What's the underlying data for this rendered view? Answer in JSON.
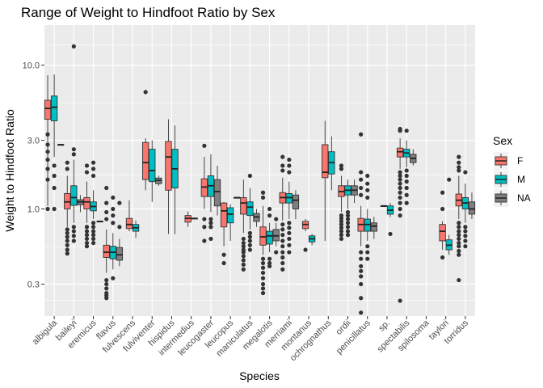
{
  "chart_data": {
    "type": "boxplot",
    "title": "Range of Weight to Hindfoot Ratio by Sex",
    "xlabel": "Species",
    "ylabel": "Weight to Hindfoot Ratio",
    "y_scale": "log10",
    "ylim": [
      0.18,
      19
    ],
    "y_ticks": [
      {
        "value": 0.3,
        "label": "0.3"
      },
      {
        "value": 1.0,
        "label": "1.0"
      },
      {
        "value": 3.0,
        "label": "3.0"
      },
      {
        "value": 10.0,
        "label": "10.0"
      }
    ],
    "grid": true,
    "legend": {
      "title": "Sex",
      "position": "right",
      "entries": [
        {
          "key": "F",
          "label": "F",
          "color": "#F8766D"
        },
        {
          "key": "M",
          "label": "M",
          "color": "#00BFC4"
        },
        {
          "key": "NA",
          "label": "NA",
          "color": "#7F7F7F"
        }
      ]
    },
    "categories": [
      "albigula",
      "baileyi",
      "eremicus",
      "flavus",
      "fulvescens",
      "fulviventer",
      "hispidus",
      "intermedius",
      "leucogaster",
      "leucopus",
      "maniculatus",
      "megalotis",
      "merriami",
      "montanus",
      "ochrognathus",
      "ordii",
      "penicillatus",
      "sp.",
      "spectabilis",
      "spilosoma",
      "taylori",
      "torridus"
    ],
    "groups": [
      {
        "species": "albigula",
        "boxes": [
          {
            "sex": "F",
            "min": 1.05,
            "q1": 4.2,
            "median": 5.0,
            "q3": 5.7,
            "max": 8.5,
            "outliers": [
              3.3,
              2.8,
              2.5,
              2.2,
              1.9,
              1.6,
              1.0
            ]
          },
          {
            "sex": "M",
            "min": 2.3,
            "q1": 4.1,
            "median": 5.1,
            "q3": 6.1,
            "max": 8.6,
            "outliers": [
              2.0,
              1.7,
              1.4,
              1.0
            ]
          },
          {
            "sex": "NA",
            "min": 2.8,
            "q1": 2.8,
            "median": 2.8,
            "q3": 2.8,
            "max": 2.8,
            "outliers": []
          }
        ]
      },
      {
        "species": "baileyi",
        "boxes": [
          {
            "sex": "F",
            "min": 0.75,
            "q1": 1.0,
            "median": 1.12,
            "q3": 1.28,
            "max": 1.7,
            "outliers": [
              2.1,
              1.9,
              0.72,
              0.68,
              0.64,
              0.6,
              0.56,
              0.52,
              0.49
            ]
          },
          {
            "sex": "M",
            "min": 0.8,
            "q1": 1.06,
            "median": 1.2,
            "q3": 1.45,
            "max": 2.2,
            "outliers": [
              13.5,
              2.6,
              2.4,
              0.75,
              0.7,
              0.65,
              0.6
            ]
          },
          {
            "sex": "NA",
            "min": 0.95,
            "q1": 1.07,
            "median": 1.12,
            "q3": 1.16,
            "max": 1.25,
            "outliers": []
          }
        ]
      },
      {
        "species": "eremicus",
        "boxes": [
          {
            "sex": "F",
            "min": 0.8,
            "q1": 1.0,
            "median": 1.12,
            "q3": 1.2,
            "max": 1.55,
            "outliers": [
              2.0,
              1.8,
              0.75,
              0.7,
              0.66,
              0.62,
              0.58,
              0.55
            ]
          },
          {
            "sex": "M",
            "min": 0.85,
            "q1": 0.97,
            "median": 1.04,
            "q3": 1.12,
            "max": 1.35,
            "outliers": [
              2.1,
              1.9,
              1.7,
              0.8,
              0.75,
              0.7,
              0.66,
              0.62,
              0.58
            ]
          },
          {
            "sex": "NA",
            "min": 0.82,
            "q1": 0.82,
            "median": 0.82,
            "q3": 0.82,
            "max": 0.82,
            "outliers": []
          }
        ]
      },
      {
        "species": "flavus",
        "boxes": [
          {
            "sex": "F",
            "min": 0.36,
            "q1": 0.46,
            "median": 0.5,
            "q3": 0.56,
            "max": 0.72,
            "outliers": [
              1.4,
              1.1,
              0.95,
              0.85,
              0.32,
              0.3,
              0.28,
              0.26,
              0.25,
              0.24
            ]
          },
          {
            "sex": "M",
            "min": 0.38,
            "q1": 0.45,
            "median": 0.5,
            "q3": 0.55,
            "max": 0.68,
            "outliers": [
              1.2,
              1.0,
              0.9,
              0.8,
              0.33
            ]
          },
          {
            "sex": "NA",
            "min": 0.4,
            "q1": 0.44,
            "median": 0.48,
            "q3": 0.54,
            "max": 0.62,
            "outliers": [
              1.1,
              0.75
            ]
          }
        ]
      },
      {
        "species": "fulvescens",
        "boxes": [
          {
            "sex": "F",
            "min": 0.7,
            "q1": 0.73,
            "median": 0.78,
            "q3": 0.86,
            "max": 1.15,
            "outliers": []
          },
          {
            "sex": "M",
            "min": 0.63,
            "q1": 0.7,
            "median": 0.74,
            "q3": 0.78,
            "max": 0.83,
            "outliers": []
          }
        ]
      },
      {
        "species": "fulviventer",
        "boxes": [
          {
            "sex": "F",
            "min": 1.35,
            "q1": 1.6,
            "median": 2.1,
            "q3": 2.9,
            "max": 3.1,
            "outliers": [
              6.5
            ]
          },
          {
            "sex": "M",
            "min": 1.12,
            "q1": 1.55,
            "median": 1.85,
            "q3": 2.6,
            "max": 3.0,
            "outliers": []
          },
          {
            "sex": "NA",
            "min": 1.45,
            "q1": 1.5,
            "median": 1.58,
            "q3": 1.64,
            "max": 1.7,
            "outliers": []
          }
        ]
      },
      {
        "species": "hispidus",
        "boxes": [
          {
            "sex": "F",
            "min": 0.67,
            "q1": 1.35,
            "median": 2.3,
            "q3": 2.95,
            "max": 4.2,
            "outliers": []
          },
          {
            "sex": "M",
            "min": 0.67,
            "q1": 1.4,
            "median": 1.9,
            "q3": 2.6,
            "max": 3.8,
            "outliers": []
          }
        ]
      },
      {
        "species": "intermedius",
        "boxes": [
          {
            "sex": "F",
            "min": 0.75,
            "q1": 0.81,
            "median": 0.86,
            "q3": 0.9,
            "max": 0.96,
            "outliers": []
          },
          {
            "sex": "M",
            "min": 0.86,
            "q1": 0.86,
            "median": 0.86,
            "q3": 0.86,
            "max": 0.86,
            "outliers": []
          }
        ]
      },
      {
        "species": "leucogaster",
        "boxes": [
          {
            "sex": "F",
            "min": 1.0,
            "q1": 1.22,
            "median": 1.42,
            "q3": 1.62,
            "max": 2.3,
            "outliers": [
              2.75,
              0.85,
              0.75,
              0.6
            ]
          },
          {
            "sex": "M",
            "min": 0.95,
            "q1": 1.22,
            "median": 1.45,
            "q3": 1.7,
            "max": 2.4,
            "outliers": [
              0.85,
              0.8,
              0.75,
              0.62
            ]
          },
          {
            "sex": "NA",
            "min": 0.9,
            "q1": 1.05,
            "median": 1.32,
            "q3": 1.6,
            "max": 2.0,
            "outliers": []
          }
        ]
      },
      {
        "species": "leucopus",
        "boxes": [
          {
            "sex": "F",
            "min": 0.55,
            "q1": 0.75,
            "median": 0.97,
            "q3": 1.1,
            "max": 1.12,
            "outliers": [
              0.48,
              0.42
            ]
          },
          {
            "sex": "M",
            "min": 0.6,
            "q1": 0.8,
            "median": 0.92,
            "q3": 1.02,
            "max": 1.08,
            "outliers": []
          },
          {
            "sex": "NA",
            "min": 1.2,
            "q1": 1.2,
            "median": 1.2,
            "q3": 1.2,
            "max": 1.2,
            "outliers": []
          }
        ]
      },
      {
        "species": "maniculatus",
        "boxes": [
          {
            "sex": "F",
            "min": 0.68,
            "q1": 0.92,
            "median": 1.1,
            "q3": 1.2,
            "max": 1.6,
            "outliers": [
              0.62,
              0.58,
              0.55,
              0.52,
              0.5,
              0.47,
              0.44,
              0.41,
              0.38
            ]
          },
          {
            "sex": "M",
            "min": 0.72,
            "q1": 0.9,
            "median": 1.03,
            "q3": 1.12,
            "max": 1.4,
            "outliers": [
              1.7,
              0.68,
              0.64,
              0.6,
              0.56,
              0.52
            ]
          },
          {
            "sex": "NA",
            "min": 0.75,
            "q1": 0.82,
            "median": 0.88,
            "q3": 0.93,
            "max": 1.0,
            "outliers": []
          }
        ]
      },
      {
        "species": "megalotis",
        "boxes": [
          {
            "sex": "F",
            "min": 0.48,
            "q1": 0.56,
            "median": 0.64,
            "q3": 0.75,
            "max": 1.05,
            "outliers": [
              1.2,
              1.3,
              0.45,
              0.42,
              0.39,
              0.36,
              0.33,
              0.3,
              0.28,
              0.26
            ]
          },
          {
            "sex": "M",
            "min": 0.5,
            "q1": 0.57,
            "median": 0.65,
            "q3": 0.7,
            "max": 0.8,
            "outliers": [
              1.0,
              0.9,
              0.45,
              0.42,
              0.4
            ]
          },
          {
            "sex": "NA",
            "min": 0.55,
            "q1": 0.6,
            "median": 0.65,
            "q3": 0.72,
            "max": 0.8,
            "outliers": [
              0.85,
              0.5
            ]
          }
        ]
      },
      {
        "species": "merriami",
        "boxes": [
          {
            "sex": "F",
            "min": 0.83,
            "q1": 1.1,
            "median": 1.2,
            "q3": 1.3,
            "max": 1.65,
            "outliers": [
              2.3,
              2.0,
              1.85,
              0.78,
              0.72,
              0.66,
              0.6,
              0.55,
              0.5,
              0.46,
              0.42,
              0.38
            ]
          },
          {
            "sex": "M",
            "min": 0.85,
            "q1": 1.1,
            "median": 1.2,
            "q3": 1.28,
            "max": 1.55,
            "outliers": [
              2.2,
              2.0,
              1.8,
              0.8,
              0.74,
              0.68,
              0.62,
              0.56,
              0.5
            ]
          },
          {
            "sex": "NA",
            "min": 0.85,
            "q1": 1.0,
            "median": 1.15,
            "q3": 1.25,
            "max": 1.35,
            "outliers": []
          }
        ]
      },
      {
        "species": "montanus",
        "boxes": [
          {
            "sex": "F",
            "min": 0.7,
            "q1": 0.73,
            "median": 0.78,
            "q3": 0.82,
            "max": 0.85,
            "outliers": [
              0.52
            ]
          },
          {
            "sex": "M",
            "min": 0.56,
            "q1": 0.59,
            "median": 0.62,
            "q3": 0.65,
            "max": 0.67,
            "outliers": []
          }
        ]
      },
      {
        "species": "ochrognathus",
        "boxes": [
          {
            "sex": "F",
            "min": 0.6,
            "q1": 1.65,
            "median": 1.8,
            "q3": 2.8,
            "max": 4.1,
            "outliers": []
          },
          {
            "sex": "M",
            "min": 1.35,
            "q1": 1.75,
            "median": 2.1,
            "q3": 2.5,
            "max": 3.2,
            "outliers": []
          }
        ]
      },
      {
        "species": "ordii",
        "boxes": [
          {
            "sex": "F",
            "min": 0.95,
            "q1": 1.22,
            "median": 1.32,
            "q3": 1.45,
            "max": 1.7,
            "outliers": [
              1.9,
              2.0,
              0.9,
              0.86,
              0.82,
              0.78,
              0.74,
              0.7,
              0.66,
              0.62
            ]
          },
          {
            "sex": "M",
            "min": 1.0,
            "q1": 1.25,
            "median": 1.35,
            "q3": 1.45,
            "max": 1.6,
            "outliers": [
              0.95,
              0.9,
              0.85,
              0.8,
              0.75,
              0.7,
              0.66
            ]
          },
          {
            "sex": "NA",
            "min": 1.1,
            "q1": 1.25,
            "median": 1.35,
            "q3": 1.45,
            "max": 1.6,
            "outliers": []
          }
        ]
      },
      {
        "species": "penicillatus",
        "boxes": [
          {
            "sex": "F",
            "min": 0.55,
            "q1": 0.7,
            "median": 0.78,
            "q3": 0.86,
            "max": 1.05,
            "outliers": [
              3.3,
              1.8,
              1.6,
              1.4,
              1.25,
              0.5,
              0.45,
              0.4,
              0.37,
              0.34,
              0.3,
              0.24,
              0.19
            ]
          },
          {
            "sex": "M",
            "min": 0.6,
            "q1": 0.7,
            "median": 0.78,
            "q3": 0.85,
            "max": 1.0,
            "outliers": [
              1.7,
              1.5,
              1.35,
              1.2,
              0.55,
              0.5,
              0.45
            ]
          },
          {
            "sex": "NA",
            "min": 0.62,
            "q1": 0.7,
            "median": 0.76,
            "q3": 0.8,
            "max": 0.88,
            "outliers": []
          }
        ]
      },
      {
        "species": "sp.",
        "boxes": [
          {
            "sex": "F",
            "min": 1.05,
            "q1": 1.05,
            "median": 1.05,
            "q3": 1.05,
            "max": 1.05,
            "outliers": []
          },
          {
            "sex": "M",
            "min": 0.88,
            "q1": 0.92,
            "median": 0.98,
            "q3": 1.05,
            "max": 1.1,
            "outliers": [
              0.67
            ]
          }
        ]
      },
      {
        "species": "spectabilis",
        "boxes": [
          {
            "sex": "F",
            "min": 1.9,
            "q1": 2.3,
            "median": 2.5,
            "q3": 2.65,
            "max": 3.1,
            "outliers": [
              3.6,
              3.5,
              1.8,
              1.7,
              1.6,
              1.5,
              1.4,
              1.3,
              1.2,
              1.1,
              1.0,
              0.9,
              0.23
            ]
          },
          {
            "sex": "M",
            "min": 1.95,
            "q1": 2.3,
            "median": 2.45,
            "q3": 2.6,
            "max": 3.0,
            "outliers": [
              3.5,
              1.85,
              1.7,
              1.55,
              1.4,
              1.25,
              1.1
            ]
          },
          {
            "sex": "NA",
            "min": 2.0,
            "q1": 2.1,
            "median": 2.25,
            "q3": 2.4,
            "max": 2.6,
            "outliers": []
          }
        ]
      },
      {
        "species": "spilosoma",
        "boxes": []
      },
      {
        "species": "taylori",
        "boxes": [
          {
            "sex": "F",
            "min": 0.52,
            "q1": 0.6,
            "median": 0.7,
            "q3": 0.78,
            "max": 0.82,
            "outliers": [
              1.3,
              1.0,
              0.46
            ]
          },
          {
            "sex": "M",
            "min": 0.48,
            "q1": 0.52,
            "median": 0.56,
            "q3": 0.61,
            "max": 0.66,
            "outliers": [
              1.6
            ]
          }
        ]
      },
      {
        "species": "torridus",
        "boxes": [
          {
            "sex": "F",
            "min": 0.85,
            "q1": 1.05,
            "median": 1.15,
            "q3": 1.27,
            "max": 1.7,
            "outliers": [
              2.3,
              2.1,
              1.95,
              1.85,
              0.8,
              0.75,
              0.7,
              0.66,
              0.62,
              0.58,
              0.55,
              0.51,
              0.48,
              0.32
            ]
          },
          {
            "sex": "M",
            "min": 0.8,
            "q1": 1.0,
            "median": 1.1,
            "q3": 1.2,
            "max": 1.5,
            "outliers": [
              1.8,
              0.75,
              0.7,
              0.65,
              0.6,
              0.55
            ]
          },
          {
            "sex": "NA",
            "min": 0.85,
            "q1": 0.92,
            "median": 1.0,
            "q3": 1.12,
            "max": 1.3,
            "outliers": []
          }
        ]
      }
    ]
  }
}
